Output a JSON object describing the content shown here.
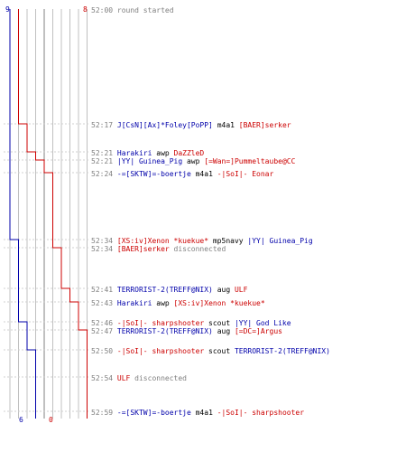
{
  "colors": {
    "team_a": "#0000aa",
    "team_b": "#cc0000",
    "time": "#808080",
    "grid": "#c0c0c0"
  },
  "counters": {
    "team_a_start": "9",
    "team_b_start": "8",
    "team_a_end": "6",
    "team_b_end": "0"
  },
  "events": [
    {
      "time": "52:00",
      "parts": [
        {
          "t": "round started",
          "c": "dim"
        }
      ]
    },
    {
      "time": "52:17",
      "parts": [
        {
          "t": "J[CsN][Ax]*Foley[PoPP]",
          "c": "blue"
        },
        {
          "t": " m4a1 ",
          "c": "plain"
        },
        {
          "t": "[BAER]serker",
          "c": "red"
        }
      ]
    },
    {
      "time": "52:21",
      "parts": [
        {
          "t": "Harakiri",
          "c": "blue"
        },
        {
          "t": " awp ",
          "c": "plain"
        },
        {
          "t": "DaZZleD",
          "c": "red"
        }
      ]
    },
    {
      "time": "52:21",
      "parts": [
        {
          "t": "|YY| Guinea_Pig",
          "c": "blue"
        },
        {
          "t": " awp ",
          "c": "plain"
        },
        {
          "t": "[=Wan=]Pummeltaube@CC",
          "c": "red"
        }
      ]
    },
    {
      "time": "52:24",
      "parts": [
        {
          "t": "-=[SKTW]=-boertje",
          "c": "blue"
        },
        {
          "t": " m4a1 ",
          "c": "plain"
        },
        {
          "t": "-|SoI|- Eonar",
          "c": "red"
        }
      ]
    },
    {
      "time": "52:34",
      "parts": [
        {
          "t": "[XS:iv]Xenon *kuekue*",
          "c": "red"
        },
        {
          "t": " mp5navy ",
          "c": "plain"
        },
        {
          "t": "|YY| Guinea_Pig",
          "c": "blue"
        }
      ]
    },
    {
      "time": "52:34",
      "parts": [
        {
          "t": "[BAER]serker",
          "c": "red"
        },
        {
          "t": " disconnected",
          "c": "dim"
        }
      ]
    },
    {
      "time": "52:41",
      "parts": [
        {
          "t": "TERRORIST-2(TREFF@NIX)",
          "c": "blue"
        },
        {
          "t": " aug ",
          "c": "plain"
        },
        {
          "t": "ULF",
          "c": "red"
        }
      ]
    },
    {
      "time": "52:43",
      "parts": [
        {
          "t": "Harakiri",
          "c": "blue"
        },
        {
          "t": " awp ",
          "c": "plain"
        },
        {
          "t": "[XS:iv]Xenon *kuekue*",
          "c": "red"
        }
      ]
    },
    {
      "time": "52:46",
      "parts": [
        {
          "t": "-|SoI|- sharpshooter",
          "c": "red"
        },
        {
          "t": " scout ",
          "c": "plain"
        },
        {
          "t": "|YY| God Like",
          "c": "blue"
        }
      ]
    },
    {
      "time": "52:47",
      "parts": [
        {
          "t": "TERRORIST-2(TREFF@NIX)",
          "c": "blue"
        },
        {
          "t": " aug ",
          "c": "plain"
        },
        {
          "t": "[=DC=]Argus",
          "c": "red"
        }
      ]
    },
    {
      "time": "52:50",
      "parts": [
        {
          "t": "-|SoI|- sharpshooter",
          "c": "red"
        },
        {
          "t": " scout ",
          "c": "plain"
        },
        {
          "t": "TERRORIST-2(TREFF@NIX)",
          "c": "blue"
        }
      ]
    },
    {
      "time": "52:54",
      "parts": [
        {
          "t": "ULF",
          "c": "red"
        },
        {
          "t": " disconnected",
          "c": "dim"
        }
      ]
    },
    {
      "time": "52:59",
      "parts": [
        {
          "t": "-=[SKTW]=-boertje",
          "c": "blue"
        },
        {
          "t": " m4a1 ",
          "c": "plain"
        },
        {
          "t": "-|SoI|- sharpshooter",
          "c": "red"
        }
      ]
    }
  ],
  "chart_data": {
    "type": "line",
    "x_unit": "event",
    "series": [
      {
        "team": "a",
        "counts": [
          9,
          9,
          9,
          9,
          9,
          8,
          8,
          8,
          8,
          7,
          7,
          6,
          6,
          6
        ]
      },
      {
        "team": "b",
        "counts": [
          8,
          7,
          6,
          5,
          4,
          4,
          3,
          2,
          1,
          1,
          0,
          0,
          0,
          0
        ]
      }
    ]
  }
}
